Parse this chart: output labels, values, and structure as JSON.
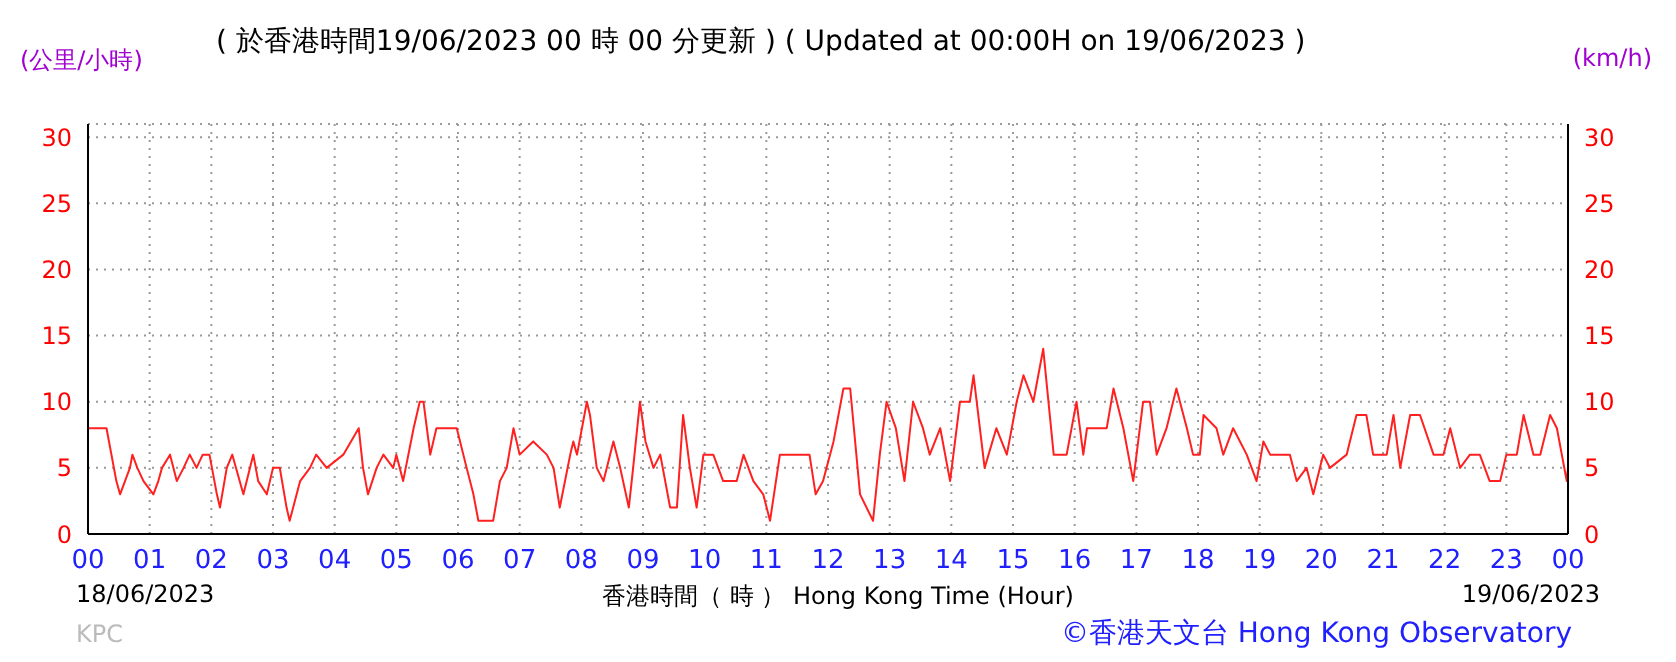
{
  "chart_data": {
    "type": "line",
    "title": "( 於香港時間19/06/2023 00 時 00 分更新 ) ( Updated at 00:00H on 19/06/2023 )",
    "xlabel": "香港時間（ 時 ） Hong Kong Time (Hour)",
    "ylabel": "(公里/小時)",
    "y2label": "(km/h)",
    "annotations": [
      "18/06/2023",
      "19/06/2023",
      "KPC",
      "©香港天文台 Hong Kong Observatory"
    ],
    "series": [
      {
        "color": "#ff2020",
        "x": [
          0,
          0.3,
          0.46,
          0.52,
          0.6,
          0.68,
          0.72,
          0.8,
          0.9,
          1.06,
          1.14,
          1.2,
          1.33,
          1.44,
          1.55,
          1.65,
          1.76,
          1.86,
          1.97,
          2.09,
          2.14,
          2.25,
          2.34,
          2.52,
          2.68,
          2.76,
          2.9,
          3.0,
          3.11,
          3.22,
          3.27,
          3.44,
          3.6,
          3.7,
          3.87,
          4.14,
          4.39,
          4.46,
          4.54,
          4.68,
          4.79,
          4.95,
          5.0,
          5.11,
          5.28,
          5.38,
          5.44,
          5.55,
          5.65,
          5.98,
          6.14,
          6.25,
          6.33,
          6.57,
          6.68,
          6.79,
          6.9,
          7.0,
          7.22,
          7.44,
          7.55,
          7.65,
          7.82,
          7.87,
          7.93,
          8.09,
          8.14,
          8.25,
          8.36,
          8.52,
          8.63,
          8.77,
          8.84,
          8.95,
          9.04,
          9.17,
          9.28,
          9.44,
          9.55,
          9.65,
          9.76,
          9.87,
          9.98,
          10.14,
          10.3,
          10.52,
          10.63,
          10.79,
          10.95,
          11.06,
          11.22,
          11.38,
          11.7,
          11.8,
          11.92,
          12.09,
          12.25,
          12.36,
          12.52,
          12.73,
          12.84,
          12.95,
          13.1,
          13.24,
          13.38,
          13.54,
          13.65,
          13.82,
          13.98,
          14.14,
          14.3,
          14.36,
          14.54,
          14.73,
          14.9,
          15.06,
          15.17,
          15.33,
          15.49,
          15.66,
          15.87,
          16.03,
          16.14,
          16.2,
          16.52,
          16.63,
          16.79,
          16.95,
          17.11,
          17.22,
          17.33,
          17.49,
          17.65,
          17.82,
          17.92,
          18.03,
          18.09,
          18.3,
          18.41,
          18.57,
          18.79,
          18.95,
          19.06,
          19.17,
          19.49,
          19.6,
          19.76,
          19.87,
          20.03,
          20.14,
          20.41,
          20.57,
          20.73,
          20.84,
          21.06,
          21.17,
          21.28,
          21.44,
          21.6,
          21.82,
          21.98,
          22.09,
          22.25,
          22.41,
          22.57,
          22.73,
          22.9,
          23.0,
          23.17,
          23.28,
          23.44,
          23.55,
          23.71,
          23.82,
          23.98,
          24
        ],
        "values": [
          8,
          8,
          4,
          3,
          4,
          5,
          6,
          5,
          4,
          3,
          4,
          5,
          6,
          4,
          5,
          6,
          5,
          6,
          6,
          3,
          2,
          5,
          6,
          3,
          6,
          4,
          3,
          5,
          5,
          2,
          1,
          4,
          5,
          6,
          5,
          6,
          8,
          5,
          3,
          5,
          6,
          5,
          6,
          4,
          8,
          10,
          10,
          6,
          8,
          8,
          5,
          3,
          1,
          1,
          4,
          5,
          8,
          6,
          7,
          6,
          5,
          2,
          6,
          7,
          6,
          10,
          9,
          5,
          4,
          7,
          5,
          2,
          5,
          10,
          7,
          5,
          6,
          2,
          2,
          9,
          5,
          2,
          6,
          6,
          4,
          4,
          6,
          4,
          3,
          1,
          6,
          6,
          6,
          3,
          4,
          7,
          11,
          11,
          3,
          1,
          6,
          10,
          8,
          4,
          10,
          8,
          6,
          8,
          4,
          10,
          10,
          12,
          5,
          8,
          6,
          10,
          12,
          10,
          14,
          6,
          6,
          10,
          6,
          8,
          8,
          11,
          8,
          4,
          10,
          10,
          6,
          8,
          11,
          8,
          6,
          6,
          9,
          8,
          6,
          8,
          6,
          4,
          7,
          6,
          6,
          4,
          5,
          3,
          6,
          5,
          6,
          9,
          9,
          6,
          6,
          9,
          5,
          9,
          9,
          6,
          6,
          8,
          5,
          6,
          6,
          4,
          4,
          6,
          6,
          9,
          6,
          6,
          9,
          8,
          4,
          5
        ]
      }
    ],
    "ylim": [
      0,
      31
    ],
    "yticks": [
      0,
      5,
      10,
      15,
      20,
      25,
      30
    ],
    "y2lim": [
      0,
      31
    ],
    "y2ticks": [
      0,
      5,
      10,
      15,
      20,
      25,
      30
    ],
    "xlim": [
      0,
      24
    ],
    "xticks": [
      {
        "value": 0,
        "label": "00"
      },
      {
        "value": 1,
        "label": "01"
      },
      {
        "value": 2,
        "label": "02"
      },
      {
        "value": 3,
        "label": "03"
      },
      {
        "value": 4,
        "label": "04"
      },
      {
        "value": 5,
        "label": "05"
      },
      {
        "value": 6,
        "label": "06"
      },
      {
        "value": 7,
        "label": "07"
      },
      {
        "value": 8,
        "label": "08"
      },
      {
        "value": 9,
        "label": "09"
      },
      {
        "value": 10,
        "label": "10"
      },
      {
        "value": 11,
        "label": "11"
      },
      {
        "value": 12,
        "label": "12"
      },
      {
        "value": 13,
        "label": "13"
      },
      {
        "value": 14,
        "label": "14"
      },
      {
        "value": 15,
        "label": "15"
      },
      {
        "value": 16,
        "label": "16"
      },
      {
        "value": 17,
        "label": "17"
      },
      {
        "value": 18,
        "label": "18"
      },
      {
        "value": 19,
        "label": "19"
      },
      {
        "value": 20,
        "label": "20"
      },
      {
        "value": 21,
        "label": "21"
      },
      {
        "value": 22,
        "label": "22"
      },
      {
        "value": 23,
        "label": "23"
      },
      {
        "value": 24,
        "label": "00"
      }
    ],
    "grid": true,
    "marker": "none",
    "line_style": "solid"
  }
}
